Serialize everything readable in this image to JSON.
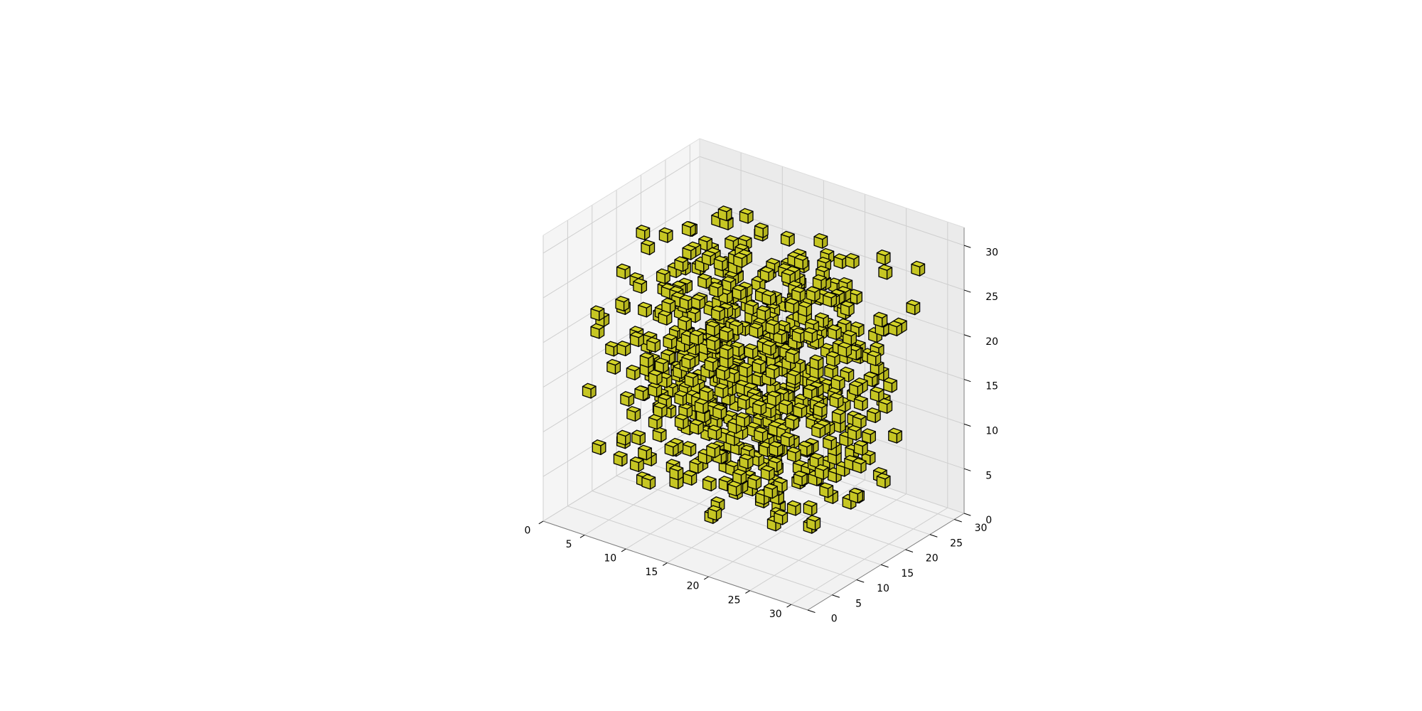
{
  "chart_data": {
    "type": "voxels",
    "title": "",
    "xlabel": "",
    "ylabel": "",
    "zlabel": "",
    "xlim": [
      0,
      32
    ],
    "ylim": [
      0,
      32
    ],
    "zlim": [
      0,
      32
    ],
    "x_ticks": [
      "0",
      "5",
      "10",
      "15",
      "20",
      "25",
      "30"
    ],
    "y_ticks": [
      "0",
      "5",
      "10",
      "15",
      "20",
      "25",
      "30"
    ],
    "z_ticks": [
      "0",
      "5",
      "10",
      "15",
      "20",
      "25",
      "30"
    ],
    "x_tick_values": [
      0,
      5,
      10,
      15,
      20,
      25,
      30
    ],
    "y_tick_values": [
      0,
      5,
      10,
      15,
      20,
      25,
      30
    ],
    "z_tick_values": [
      0,
      5,
      10,
      15,
      20,
      25,
      30
    ],
    "grid": true,
    "voxel_face_color": "#d4d428",
    "voxel_edge_color": "#000000",
    "voxel_size": 1,
    "voxel_count_estimate": 600,
    "distribution": "random scatter filling the central region (about x 3-29, y 3-29, z 3-29) of the 32x32x32 grid, densest toward the core"
  }
}
